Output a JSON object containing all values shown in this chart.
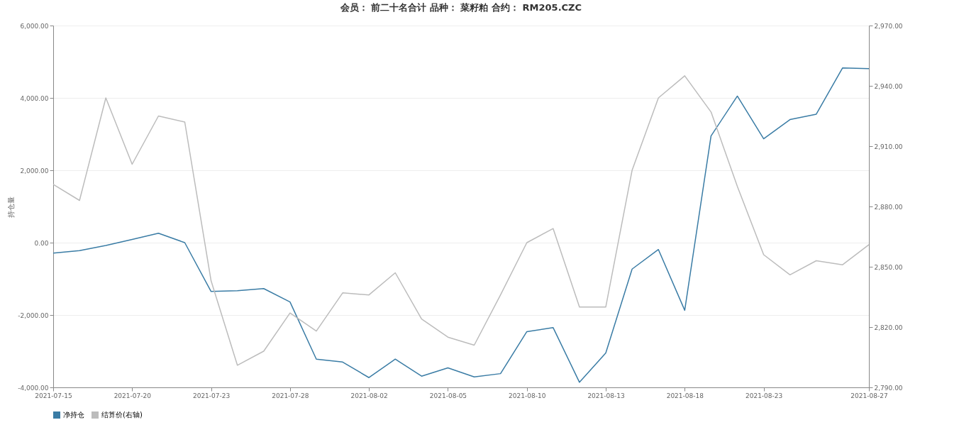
{
  "chart_data": {
    "type": "line",
    "title": "会员： 前二十名合计 品种： 菜籽粕 合约： RM205.CZC",
    "ylabel": "持仓量",
    "categories": [
      "2021-07-15",
      null,
      null,
      "2021-07-20",
      null,
      null,
      "2021-07-23",
      null,
      null,
      "2021-07-28",
      null,
      null,
      "2021-08-02",
      null,
      null,
      "2021-08-05",
      null,
      null,
      "2021-08-10",
      null,
      null,
      "2021-08-13",
      null,
      null,
      "2021-08-18",
      null,
      null,
      "2021-08-23",
      null,
      null,
      null,
      "2021-08-27"
    ],
    "series": [
      {
        "name": "净持仓",
        "color": "#3a7ca5",
        "values": [
          -290,
          -220,
          -80,
          90,
          260,
          0,
          -1350,
          -1330,
          -1270,
          -1640,
          -3220,
          -3300,
          -3730,
          -3220,
          -3690,
          -3460,
          -3710,
          -3620,
          -2460,
          -2350,
          -3860,
          -3050,
          -730,
          -190,
          -1870,
          2950,
          4050,
          2870,
          3400,
          3550,
          4830,
          4810
        ]
      },
      {
        "name": "结算价(右轴)",
        "color": "#bcbcbc",
        "axis": "y2",
        "values": [
          2891,
          2883,
          2934,
          2901,
          2925,
          2922,
          2843,
          2801,
          2808,
          2827,
          2818,
          2837,
          2836,
          2847,
          2824,
          2815,
          2811,
          2836,
          2862,
          2869,
          2830,
          2830,
          2898,
          2934,
          2945,
          2927,
          2890,
          2856,
          2846,
          2853,
          2851,
          2861
        ]
      }
    ],
    "ylim": [
      -4000,
      6000
    ],
    "yticks": [
      {
        "value": -4000,
        "label": "-4,000.00"
      },
      {
        "value": -2000,
        "label": "-2,000.00"
      },
      {
        "value": 0,
        "label": "0.00"
      },
      {
        "value": 2000,
        "label": "2,000.00"
      },
      {
        "value": 4000,
        "label": "4,000.00"
      },
      {
        "value": 6000,
        "label": "6,000.00"
      }
    ],
    "y2lim": [
      2790,
      2970
    ],
    "y2ticks": [
      {
        "value": 2790,
        "label": "2,790.00"
      },
      {
        "value": 2820,
        "label": "2,820.00"
      },
      {
        "value": 2850,
        "label": "2,850.00"
      },
      {
        "value": 2880,
        "label": "2,880.00"
      },
      {
        "value": 2910,
        "label": "2,910.00"
      },
      {
        "value": 2940,
        "label": "2,940.00"
      },
      {
        "value": 2970,
        "label": "2,970.00"
      }
    ],
    "grid": "y",
    "legend": "bottom",
    "marker": "none",
    "line_style": "solid"
  }
}
